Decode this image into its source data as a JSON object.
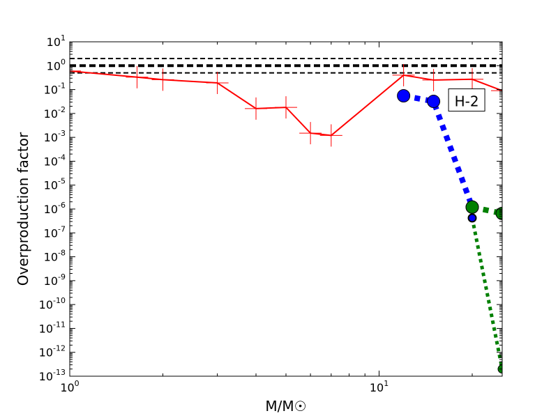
{
  "chart_data": {
    "type": "line",
    "title": "",
    "xlabel": "M/M☉",
    "ylabel": "Overproduction factor",
    "xscale": "log",
    "yscale": "log",
    "xlim": [
      1,
      25
    ],
    "ylim": [
      1e-13,
      10
    ],
    "grid": false,
    "x_ticks": [
      {
        "value": 1,
        "base": "10",
        "exp": "0"
      },
      {
        "value": 10,
        "base": "10",
        "exp": "1"
      }
    ],
    "y_ticks": [
      {
        "value": 10,
        "base": "10",
        "exp": "1"
      },
      {
        "value": 1,
        "base": "10",
        "exp": "0"
      },
      {
        "value": 0.1,
        "base": "10",
        "exp": "-1"
      },
      {
        "value": 0.01,
        "base": "10",
        "exp": "-2"
      },
      {
        "value": 0.001,
        "base": "10",
        "exp": "-3"
      },
      {
        "value": 0.0001,
        "base": "10",
        "exp": "-4"
      },
      {
        "value": 1e-05,
        "base": "10",
        "exp": "-5"
      },
      {
        "value": 1e-06,
        "base": "10",
        "exp": "-6"
      },
      {
        "value": 1e-07,
        "base": "10",
        "exp": "-7"
      },
      {
        "value": 1e-08,
        "base": "10",
        "exp": "-8"
      },
      {
        "value": 1e-09,
        "base": "10",
        "exp": "-9"
      },
      {
        "value": 1e-10,
        "base": "10",
        "exp": "-10"
      },
      {
        "value": 1e-11,
        "base": "10",
        "exp": "-11"
      },
      {
        "value": 1e-12,
        "base": "10",
        "exp": "-12"
      },
      {
        "value": 1e-13,
        "base": "10",
        "exp": "-13"
      }
    ],
    "reference_lines": [
      {
        "y": 2.0,
        "color": "#000000",
        "style": "dashed",
        "weight": "thin"
      },
      {
        "y": 1.0,
        "color": "#000000",
        "style": "dashed",
        "weight": "thick"
      },
      {
        "y": 0.5,
        "color": "#000000",
        "style": "dashed",
        "weight": "thin"
      }
    ],
    "series": [
      {
        "color": "#ff0000",
        "style": "solid",
        "marker": "plus",
        "x": [
          1,
          1.65,
          2,
          3,
          4,
          5,
          6,
          7,
          12,
          15,
          20,
          25
        ],
        "y": [
          0.6,
          0.33,
          0.26,
          0.19,
          0.016,
          0.018,
          0.0015,
          0.0012,
          0.4,
          0.25,
          0.27,
          0.09
        ]
      },
      {
        "color": "#0000ff",
        "style": "dotted",
        "marker": "circle",
        "x": [
          12,
          15,
          20
        ],
        "y": [
          0.055,
          0.032,
          1.2e-06
        ]
      },
      {
        "color": "#008000",
        "style": "dotted",
        "marker": "circle",
        "x": [
          20,
          25
        ],
        "y": [
          1.2e-06,
          6.5e-07
        ]
      },
      {
        "color": "#008000",
        "style": "dotted",
        "marker": "circle-small",
        "x": [
          20,
          25
        ],
        "y": [
          4.2e-07,
          2e-13
        ]
      }
    ],
    "extra_markers": [
      {
        "x": 20,
        "y": 4.2e-07,
        "color": "#0000ff",
        "size": "small"
      }
    ],
    "annotations": [
      {
        "text": "H-2",
        "x": 17.3,
        "y": 0.032
      }
    ]
  }
}
